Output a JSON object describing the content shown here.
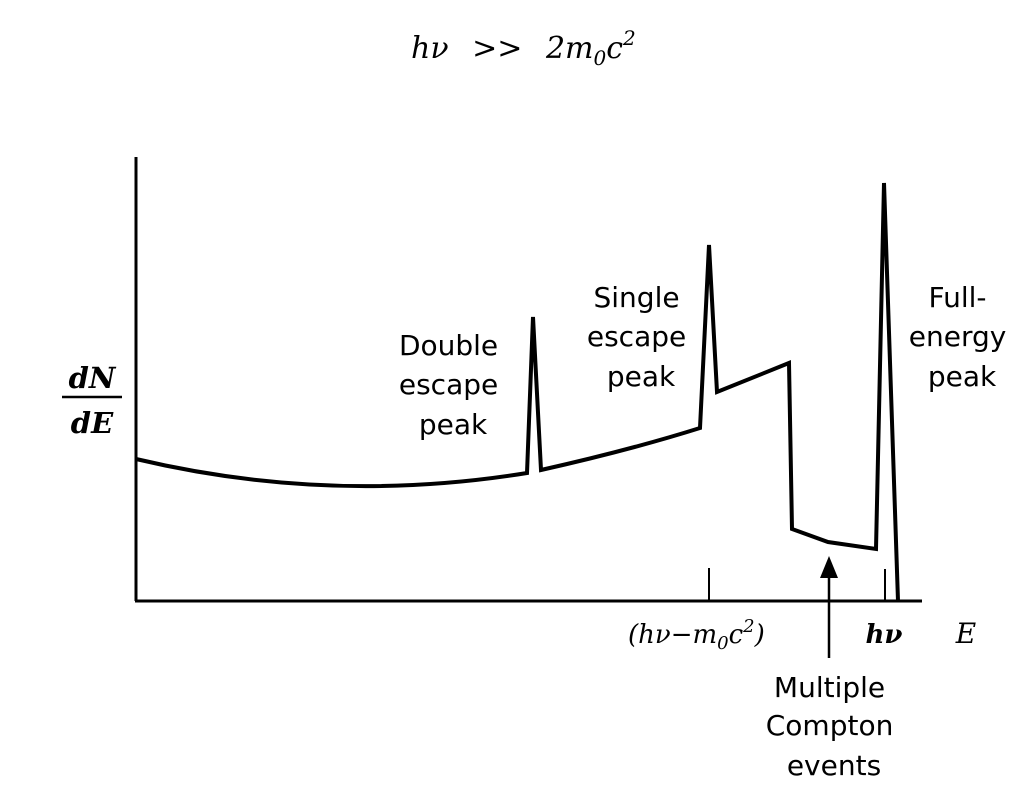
{
  "title": {
    "lhs": "hν",
    "op": ">>",
    "rhs_coeff": "2m",
    "rhs_sub": "0",
    "rhs_c": "c",
    "rhs_sup": "2"
  },
  "yaxis": {
    "numerator": "dN",
    "denominator": "dE"
  },
  "xaxis": {
    "label": "E",
    "tick_single": {
      "open": "(hν−m",
      "sub": "0",
      "c": "c",
      "sup": "2",
      "close": ")"
    },
    "tick_full": "hν"
  },
  "peaks": {
    "double": [
      "Double",
      "escape",
      "peak"
    ],
    "single": [
      "Single",
      "escape",
      "peak"
    ],
    "full": [
      "Full-",
      "energy",
      "peak"
    ]
  },
  "compton_note": [
    "Multiple",
    "Compton",
    "events"
  ]
}
